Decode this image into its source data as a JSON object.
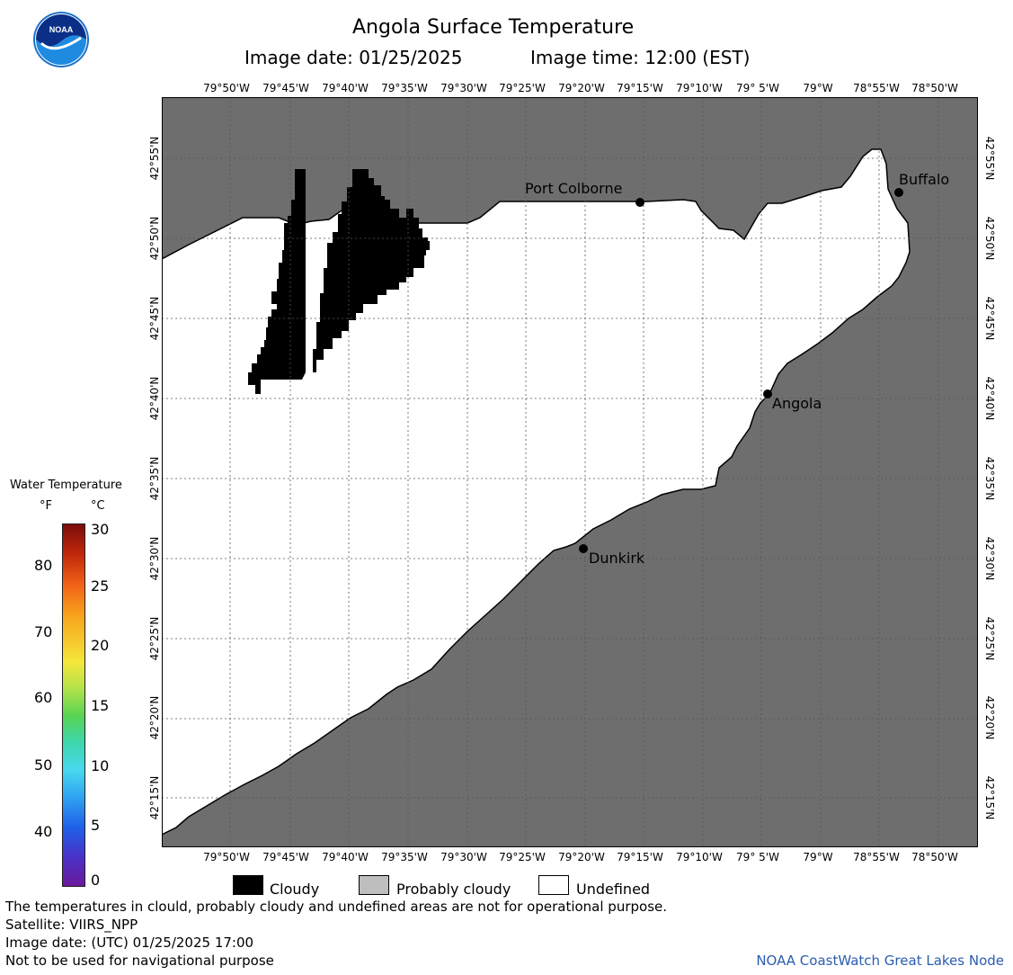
{
  "header": {
    "title": "Angola Surface Temperature",
    "image_date_label": "Image date: 01/25/2025",
    "image_time_label": "Image time: 12:00 (EST)"
  },
  "logo": {
    "text": "NOAA"
  },
  "map": {
    "lon_labels": [
      "79°50'W",
      "79°45'W",
      "79°40'W",
      "79°35'W",
      "79°30'W",
      "79°25'W",
      "79°20'W",
      "79°15'W",
      "79°10'W",
      "79° 5'W",
      "79°W",
      "78°55'W",
      "78°50'W"
    ],
    "lat_labels": [
      "42°55'N",
      "42°50'N",
      "42°45'N",
      "42°40'N",
      "42°35'N",
      "42°30'N",
      "42°25'N",
      "42°20'N",
      "42°15'N"
    ],
    "cities": [
      {
        "name": "Port Colborne"
      },
      {
        "name": "Buffalo"
      },
      {
        "name": "Angola"
      },
      {
        "name": "Dunkirk"
      }
    ],
    "colors": {
      "land": "#6e6e6e",
      "cloud": "#000000",
      "undefined": "#ffffff",
      "probably_cloudy": "#bebebe"
    }
  },
  "colorbar": {
    "title": "Water Temperature",
    "unit_f": "°F",
    "unit_c": "°C",
    "f_ticks": [
      "80",
      "70",
      "60",
      "50",
      "40"
    ],
    "c_ticks": [
      "30",
      "25",
      "20",
      "15",
      "10",
      "5",
      "0"
    ]
  },
  "legend": {
    "cloudy": "Cloudy",
    "probably_cloudy": "Probably cloudy",
    "undefined": "Undefined"
  },
  "footer": {
    "disclaimer": "The temperatures in clould, probably cloudy and undefined areas are not for operational purpose.",
    "satellite": "Satellite: VIIRS_NPP",
    "utc_date": "Image date: (UTC) 01/25/2025  17:00",
    "nav_warning": "Not to be used for navigational purpose",
    "credit": "NOAA CoastWatch Great Lakes Node"
  }
}
